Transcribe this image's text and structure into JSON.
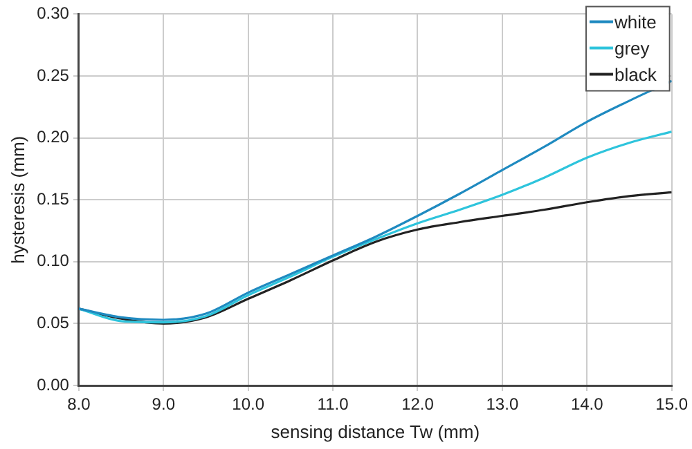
{
  "chart_data": {
    "type": "line",
    "xlabel": "sensing distance Tw (mm)",
    "ylabel": "hysteresis (mm)",
    "x": [
      8,
      8.5,
      9,
      9.5,
      10,
      10.5,
      11,
      11.5,
      12,
      12.5,
      13,
      13.5,
      14,
      14.5,
      15
    ],
    "series": [
      {
        "name": "white",
        "color": "#1f8ac0",
        "values": [
          0.062,
          0.055,
          0.053,
          0.058,
          0.075,
          0.09,
          0.105,
          0.12,
          0.137,
          0.155,
          0.174,
          0.193,
          0.213,
          0.23,
          0.246
        ]
      },
      {
        "name": "grey",
        "color": "#2ec4dc",
        "values": [
          0.062,
          0.052,
          0.051,
          0.056,
          0.073,
          0.088,
          0.104,
          0.118,
          0.131,
          0.142,
          0.154,
          0.168,
          0.184,
          0.196,
          0.205
        ]
      },
      {
        "name": "black",
        "color": "#222222",
        "values": [
          0.062,
          0.054,
          0.05,
          0.055,
          0.07,
          0.085,
          0.101,
          0.116,
          0.126,
          0.132,
          0.137,
          0.142,
          0.148,
          0.153,
          0.156
        ]
      }
    ],
    "xlim": [
      8,
      15
    ],
    "xticks": [
      {
        "value": 8,
        "label": "8.0"
      },
      {
        "value": 9,
        "label": "9.0"
      },
      {
        "value": 10,
        "label": "10.0"
      },
      {
        "value": 11,
        "label": "11.0"
      },
      {
        "value": 12,
        "label": "12.0"
      },
      {
        "value": 13,
        "label": "13.0"
      },
      {
        "value": 14,
        "label": "14.0"
      },
      {
        "value": 15,
        "label": "15.0"
      }
    ],
    "ylim": [
      0,
      0.3
    ],
    "yticks": [
      {
        "value": 0,
        "label": "0.00"
      },
      {
        "value": 0.05,
        "label": "0.05"
      },
      {
        "value": 0.1,
        "label": "0.10"
      },
      {
        "value": 0.15,
        "label": "0.15"
      },
      {
        "value": 0.2,
        "label": "0.20"
      },
      {
        "value": 0.25,
        "label": "0.25"
      },
      {
        "value": 0.3,
        "label": "0.30"
      }
    ],
    "grid": true,
    "legend": "top right",
    "marker": "none",
    "line_style": "solid"
  }
}
